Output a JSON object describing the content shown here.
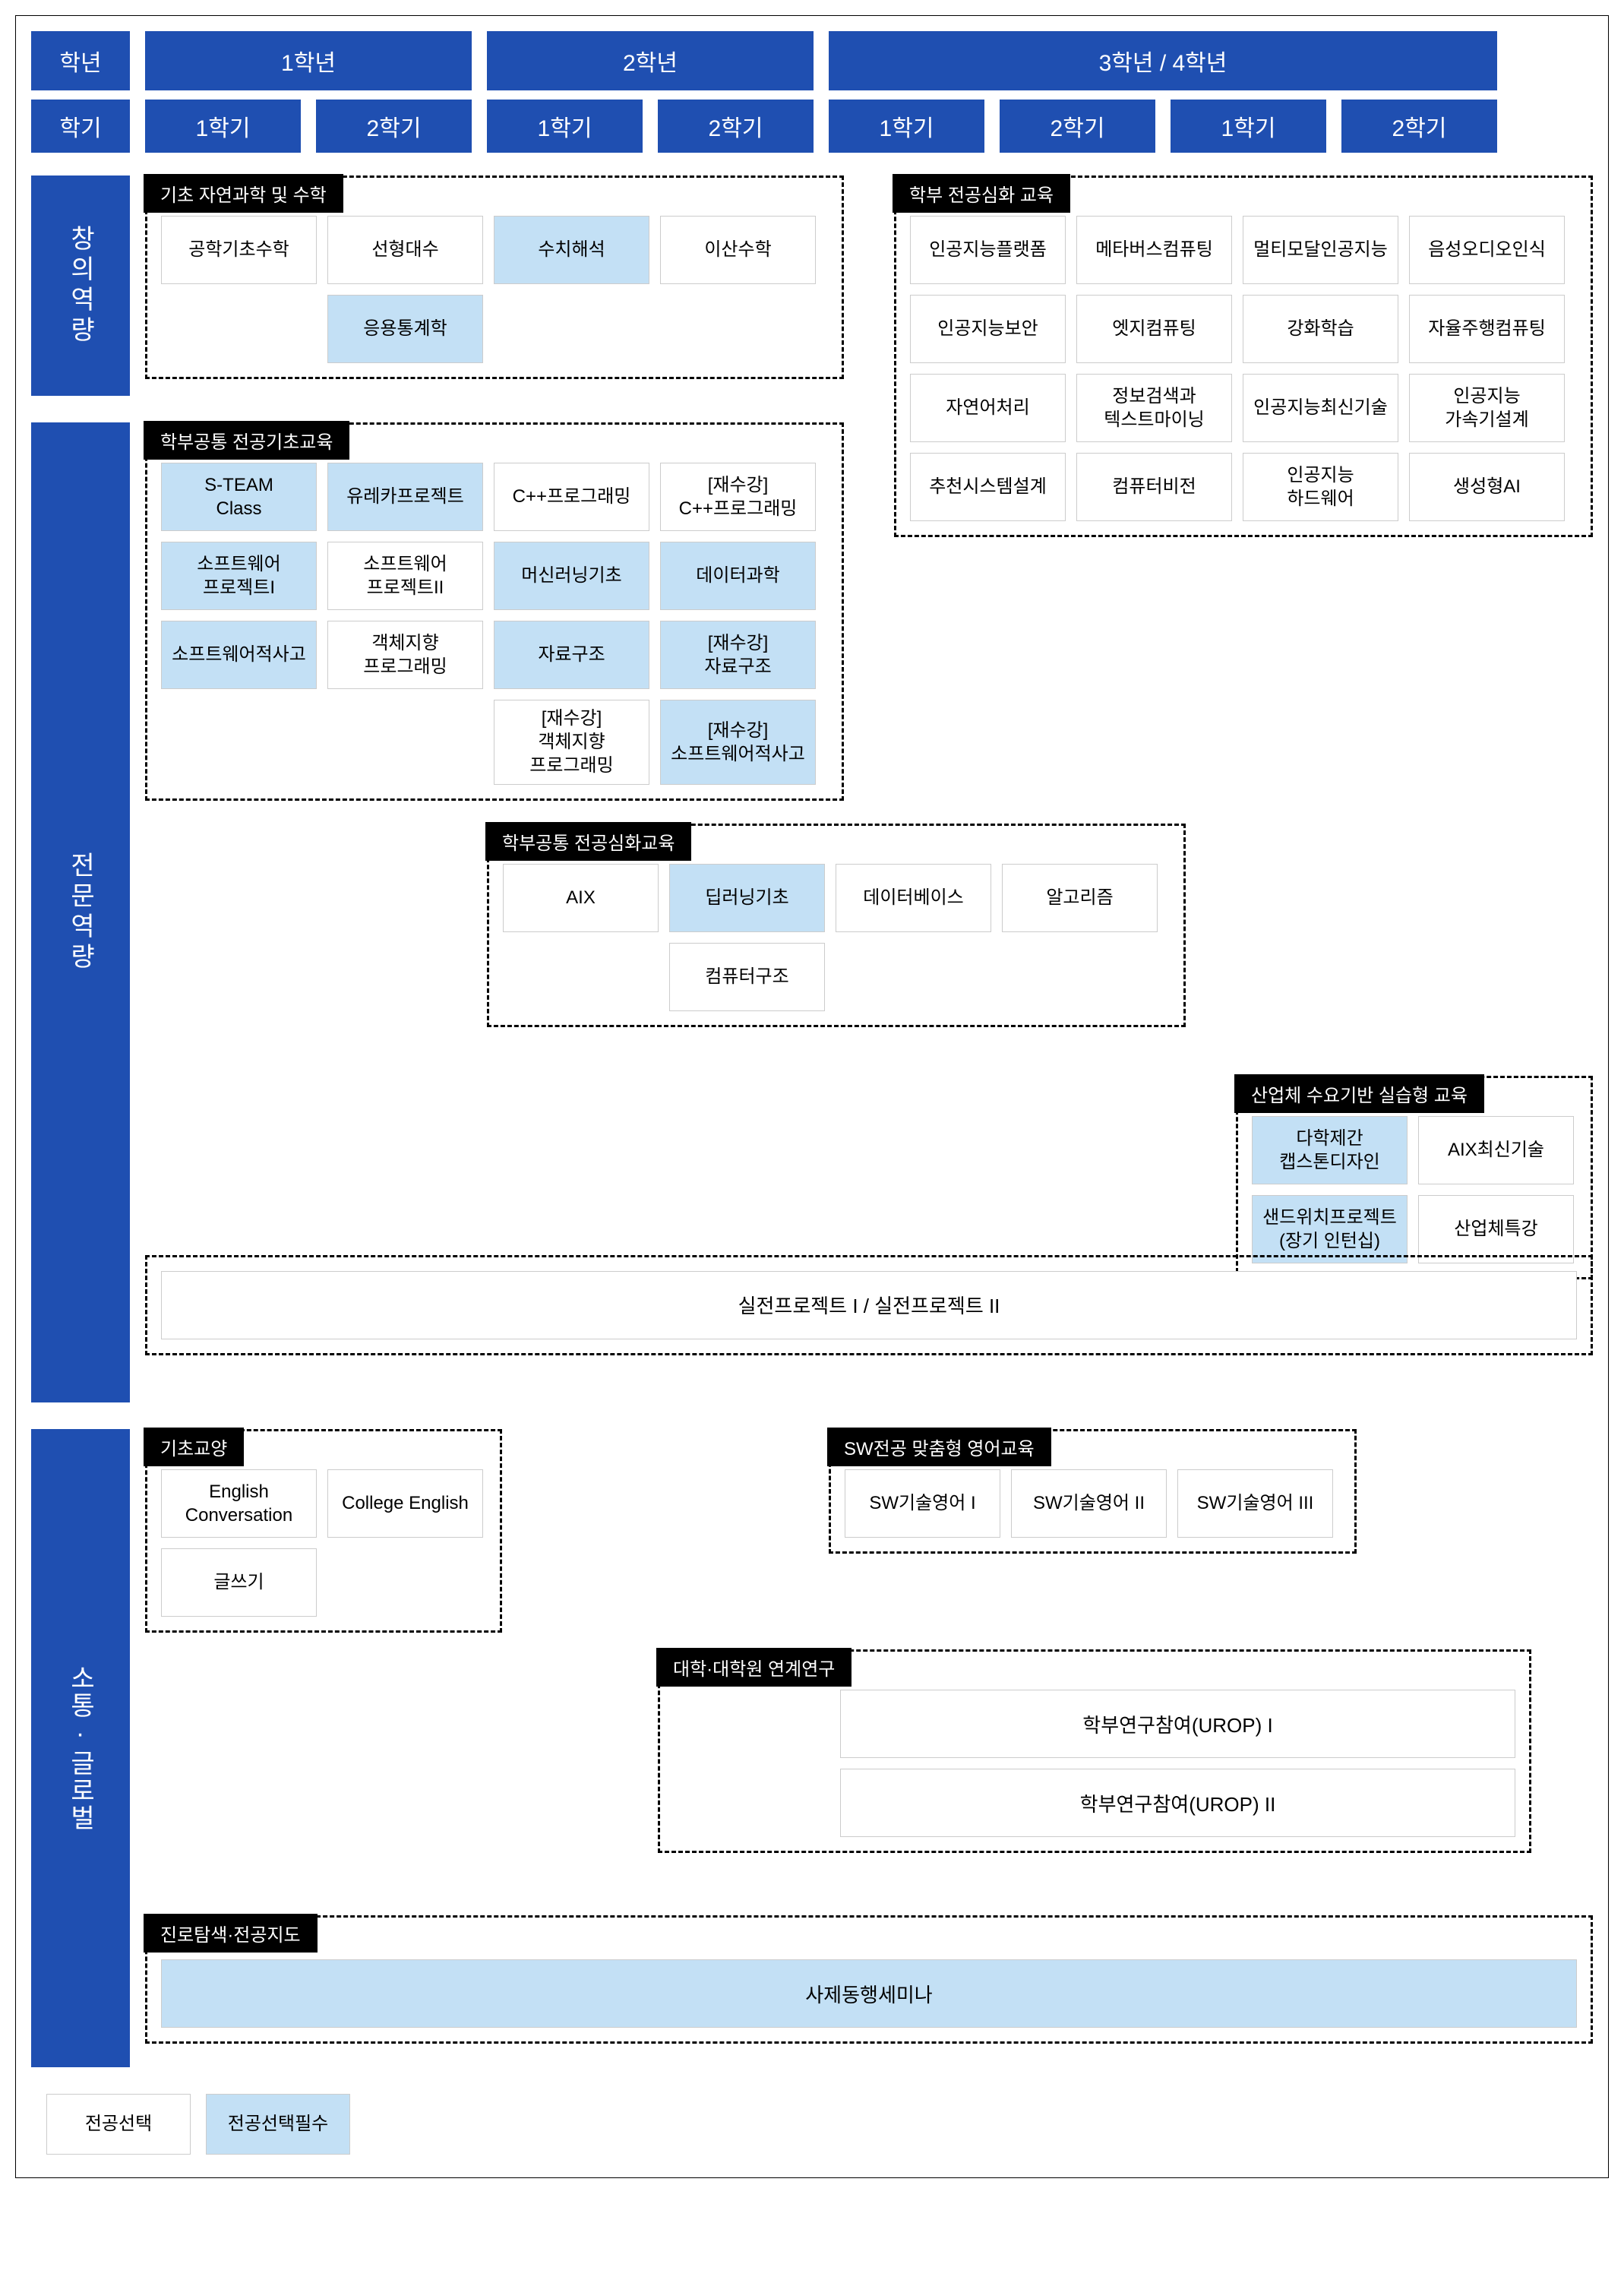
{
  "colors": {
    "header_bg": "#1f4fb1",
    "header_fg": "#ffffff",
    "section_title_bg": "#000000",
    "section_title_fg": "#ffffff",
    "course_border": "#cccccc",
    "course_elective_bg": "#ffffff",
    "course_required_bg": "#c3e0f5",
    "dashed_border": "#000000",
    "page_bg": "#ffffff"
  },
  "header": {
    "grade_label": "학년",
    "semester_label": "학기",
    "years": [
      "1학년",
      "2학년",
      "3학년 / 4학년"
    ],
    "semesters": [
      "1학기",
      "2학기",
      "1학기",
      "2학기",
      "1학기",
      "2학기",
      "1학기",
      "2학기"
    ]
  },
  "rows": {
    "r1_label": "창의역량",
    "r2_label": "전문역량",
    "r3_label": "소통·글로벌"
  },
  "sections": {
    "basic_sci": {
      "title": "기초 자연과학 및 수학",
      "courses": [
        {
          "name": "공학기초수학",
          "req": false
        },
        {
          "name": "선형대수",
          "req": false
        },
        {
          "name": "수치해석",
          "req": true
        },
        {
          "name": "이산수학",
          "req": false
        },
        {
          "name": "응용통계학",
          "req": true
        }
      ]
    },
    "dept_advanced": {
      "title": "학부 전공심화 교육",
      "courses": [
        {
          "name": "인공지능플랫폼",
          "req": false
        },
        {
          "name": "메타버스컴퓨팅",
          "req": false
        },
        {
          "name": "멀티모달인공지능",
          "req": false
        },
        {
          "name": "음성오디오인식",
          "req": false
        },
        {
          "name": "인공지능보안",
          "req": false
        },
        {
          "name": "엣지컴퓨팅",
          "req": false
        },
        {
          "name": "강화학습",
          "req": false
        },
        {
          "name": "자율주행컴퓨팅",
          "req": false
        },
        {
          "name": "자연어처리",
          "req": false
        },
        {
          "name": "정보검색과\n텍스트마이닝",
          "req": false
        },
        {
          "name": "인공지능최신기술",
          "req": false
        },
        {
          "name": "인공지능\n가속기설계",
          "req": false
        },
        {
          "name": "추천시스템설계",
          "req": false
        },
        {
          "name": "컴퓨터비전",
          "req": false
        },
        {
          "name": "인공지능\n하드웨어",
          "req": false
        },
        {
          "name": "생성형AI",
          "req": false
        }
      ]
    },
    "common_basic": {
      "title": "학부공통 전공기초교육",
      "courses": [
        {
          "name": "S-TEAM\nClass",
          "req": true
        },
        {
          "name": "유레카프로젝트",
          "req": true
        },
        {
          "name": "C++프로그래밍",
          "req": false
        },
        {
          "name": "[재수강]\nC++프로그래밍",
          "req": false
        },
        {
          "name": "소프트웨어\n프로젝트I",
          "req": true
        },
        {
          "name": "소프트웨어\n프로젝트II",
          "req": false
        },
        {
          "name": "머신러닝기초",
          "req": true
        },
        {
          "name": "데이터과학",
          "req": true
        },
        {
          "name": "소프트웨어적사고",
          "req": true
        },
        {
          "name": "객체지향\n프로그래밍",
          "req": false
        },
        {
          "name": "자료구조",
          "req": true
        },
        {
          "name": "[재수강]\n자료구조",
          "req": true
        },
        {
          "name": "[재수강]\n객체지향\n프로그래밍",
          "req": false
        },
        {
          "name": "[재수강]\n소프트웨어적사고",
          "req": true
        }
      ]
    },
    "common_advanced": {
      "title": "학부공통 전공심화교육",
      "courses": [
        {
          "name": "AIX",
          "req": false
        },
        {
          "name": "딥러닝기초",
          "req": true
        },
        {
          "name": "데이터베이스",
          "req": false
        },
        {
          "name": "알고리즘",
          "req": false
        },
        {
          "name": "컴퓨터구조",
          "req": false
        }
      ]
    },
    "industry": {
      "title": "산업체 수요기반 실습형 교육",
      "courses": [
        {
          "name": "다학제간\n캡스톤디자인",
          "req": true
        },
        {
          "name": "AIX최신기술",
          "req": false
        },
        {
          "name": "샌드위치프로젝트\n(장기 인턴십)",
          "req": true
        },
        {
          "name": "산업체특강",
          "req": false
        }
      ]
    },
    "practical": {
      "label": "실전프로젝트 I / 실전프로젝트 II"
    },
    "liberal": {
      "title": "기초교양",
      "courses": [
        {
          "name": "English\nConversation",
          "req": false
        },
        {
          "name": "College English",
          "req": false
        },
        {
          "name": "글쓰기",
          "req": false
        }
      ]
    },
    "sw_english": {
      "title": "SW전공 맞춤형 영어교육",
      "courses": [
        {
          "name": "SW기술영어 I",
          "req": false
        },
        {
          "name": "SW기술영어 II",
          "req": false
        },
        {
          "name": "SW기술영어 III",
          "req": false
        }
      ]
    },
    "research": {
      "title": "대학·대학원 연계연구",
      "courses": [
        {
          "name": "학부연구참여(UROP) I",
          "req": false
        },
        {
          "name": "학부연구참여(UROP) II",
          "req": false
        }
      ]
    },
    "career": {
      "title": "진로탐색·전공지도",
      "course": {
        "name": "사제동행세미나",
        "req": true
      }
    }
  },
  "legend": {
    "elective": "전공선택",
    "required": "전공선택필수"
  }
}
